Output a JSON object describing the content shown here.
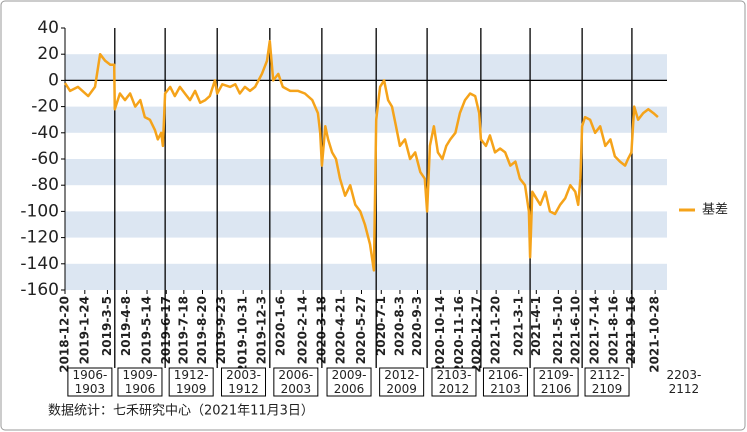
{
  "chart_data": {
    "type": "line",
    "x": [
      "2018-12-20",
      "2018-12-29",
      "2019-01-12",
      "2019-01-30",
      "2019-02-11",
      "2019-02-20",
      "2019-03-01",
      "2019-03-10",
      "2019-03-17",
      "2019-03-18",
      "2019-03-27",
      "2019-04-05",
      "2019-04-14",
      "2019-04-23",
      "2019-05-02",
      "2019-05-10",
      "2019-05-19",
      "2019-05-28",
      "2019-06-02",
      "2019-06-08",
      "2019-06-11",
      "2019-06-15",
      "2019-06-24",
      "2019-07-02",
      "2019-07-11",
      "2019-07-20",
      "2019-07-29",
      "2019-08-07",
      "2019-08-16",
      "2019-08-25",
      "2019-09-02",
      "2019-09-11",
      "2019-09-15",
      "2019-09-24",
      "2019-10-08",
      "2019-10-17",
      "2019-10-25",
      "2019-11-03",
      "2019-11-12",
      "2019-11-21",
      "2019-12-03",
      "2019-12-12",
      "2019-12-17",
      "2019-12-23",
      "2020-01-01",
      "2020-01-09",
      "2020-01-22",
      "2020-02-05",
      "2020-02-17",
      "2020-03-01",
      "2020-03-11",
      "2020-03-15",
      "2020-03-18",
      "2020-03-24",
      "2020-03-29",
      "2020-04-05",
      "2020-04-12",
      "2020-04-19",
      "2020-04-28",
      "2020-05-07",
      "2020-05-16",
      "2020-05-25",
      "2020-06-02",
      "2020-06-11",
      "2020-06-18",
      "2020-06-22",
      "2020-06-29",
      "2020-07-06",
      "2020-07-13",
      "2020-07-20",
      "2020-07-27",
      "2020-08-03",
      "2020-08-12",
      "2020-08-21",
      "2020-08-30",
      "2020-09-08",
      "2020-09-16",
      "2020-09-20",
      "2020-09-25",
      "2020-10-02",
      "2020-10-09",
      "2020-10-17",
      "2020-10-24",
      "2020-10-31",
      "2020-11-09",
      "2020-11-17",
      "2020-11-26",
      "2020-12-05",
      "2020-12-14",
      "2020-12-21",
      "2020-12-24",
      "2021-01-02",
      "2021-01-09",
      "2021-01-18",
      "2021-01-27",
      "2021-02-05",
      "2021-02-14",
      "2021-02-23",
      "2021-03-03",
      "2021-03-12",
      "2021-03-19",
      "2021-03-21",
      "2021-03-25",
      "2021-04-01",
      "2021-04-08",
      "2021-04-17",
      "2021-04-25",
      "2021-05-04",
      "2021-05-13",
      "2021-05-22",
      "2021-05-31",
      "2021-06-09",
      "2021-06-14",
      "2021-06-18",
      "2021-06-21",
      "2021-06-26",
      "2021-07-05",
      "2021-07-14",
      "2021-07-23",
      "2021-08-01",
      "2021-08-10",
      "2021-08-18",
      "2021-08-27",
      "2021-09-05",
      "2021-09-10",
      "2021-09-16",
      "2021-09-21",
      "2021-09-28",
      "2021-10-07",
      "2021-10-16",
      "2021-10-25",
      "2021-11-02"
    ],
    "series": [
      {
        "name": "基差",
        "color": "#f5a31a",
        "values": [
          -2,
          -8,
          -5,
          -12,
          -5,
          20,
          15,
          12,
          12,
          -22,
          -10,
          -15,
          -10,
          -20,
          -15,
          -28,
          -30,
          -38,
          -45,
          -40,
          -50,
          -10,
          -5,
          -12,
          -5,
          -10,
          -15,
          -8,
          -17,
          -15,
          -12,
          0,
          -10,
          -3,
          -5,
          -3,
          -10,
          -5,
          -8,
          -5,
          5,
          15,
          30,
          0,
          5,
          -5,
          -8,
          -8,
          -10,
          -15,
          -25,
          -40,
          -65,
          -35,
          -45,
          -55,
          -60,
          -75,
          -88,
          -80,
          -95,
          -100,
          -110,
          -125,
          -145,
          -30,
          -5,
          0,
          -15,
          -20,
          -35,
          -50,
          -45,
          -60,
          -55,
          -70,
          -75,
          -100,
          -50,
          -35,
          -55,
          -60,
          -50,
          -45,
          -40,
          -25,
          -15,
          -10,
          -12,
          -25,
          -45,
          -50,
          -42,
          -55,
          -52,
          -55,
          -65,
          -62,
          -75,
          -80,
          -100,
          -135,
          -85,
          -90,
          -95,
          -85,
          -100,
          -102,
          -95,
          -90,
          -80,
          -85,
          -95,
          -75,
          -35,
          -28,
          -30,
          -40,
          -35,
          -50,
          -45,
          -58,
          -62,
          -65,
          -60,
          -55,
          -20,
          -30,
          -25,
          -22,
          -25,
          -28
        ]
      }
    ],
    "xlim": [
      "2018-12-20",
      "2021-11-18"
    ],
    "xticks": [
      {
        "value": "2018-12-20",
        "label": "2018-12-20"
      },
      {
        "value": "2019-01-24",
        "label": "2019-1-24"
      },
      {
        "value": "2019-03-05",
        "label": "2019-3-5"
      },
      {
        "value": "2019-04-08",
        "label": "2019-4-8"
      },
      {
        "value": "2019-05-14",
        "label": "2019-5-14"
      },
      {
        "value": "2019-06-17",
        "label": "2019-6-17"
      },
      {
        "value": "2019-07-18",
        "label": "2019-7-18"
      },
      {
        "value": "2019-08-20",
        "label": "2019-8-20"
      },
      {
        "value": "2019-09-23",
        "label": "2019-9-23"
      },
      {
        "value": "2019-10-31",
        "label": "2019-10-31"
      },
      {
        "value": "2019-12-03",
        "label": "2019-12-3"
      },
      {
        "value": "2020-01-06",
        "label": "2020-1-6"
      },
      {
        "value": "2020-02-14",
        "label": "2020-2-14"
      },
      {
        "value": "2020-03-18",
        "label": "2020-3-18"
      },
      {
        "value": "2020-04-21",
        "label": "2020-4-21"
      },
      {
        "value": "2020-05-27",
        "label": "2020-5-27"
      },
      {
        "value": "2020-07-01",
        "label": "2020-7-1"
      },
      {
        "value": "2020-08-03",
        "label": "2020-8-3"
      },
      {
        "value": "2020-09-03",
        "label": "2020-9-3"
      },
      {
        "value": "2020-10-14",
        "label": "2020-10-14"
      },
      {
        "value": "2020-11-16",
        "label": "2020-11-16"
      },
      {
        "value": "2020-12-17",
        "label": "2020-12-17"
      },
      {
        "value": "2021-01-20",
        "label": "2021-1-20"
      },
      {
        "value": "2021-03-01",
        "label": "2021-3-1"
      },
      {
        "value": "2021-04-01",
        "label": "2021-4-1"
      },
      {
        "value": "2021-05-10",
        "label": "2021-5-10"
      },
      {
        "value": "2021-06-10",
        "label": "2021-6-10"
      },
      {
        "value": "2021-07-14",
        "label": "2021-7-14"
      },
      {
        "value": "2021-08-16",
        "label": "2021-8-16"
      },
      {
        "value": "2021-09-16",
        "label": "2021-9-16"
      },
      {
        "value": "2021-10-28",
        "label": "2021-10-28"
      }
    ],
    "ylim": [
      -160,
      40
    ],
    "yticks": [
      -160,
      -140,
      -120,
      -100,
      -80,
      -60,
      -40,
      -20,
      0,
      20,
      40
    ],
    "bands": true,
    "band_color": "#dce6f2",
    "zero_line": true,
    "legend": "right",
    "contract_switches": [
      "2019-03-18",
      "2019-06-15",
      "2019-09-15",
      "2019-12-17",
      "2020-03-18",
      "2020-06-22",
      "2020-09-20",
      "2020-12-24",
      "2021-03-21",
      "2021-06-21",
      "2021-09-17"
    ],
    "contract_periods": [
      "1906-1903",
      "1909-1906",
      "1912-1909",
      "2003-1912",
      "2006-2003",
      "2009-2006",
      "2012-2009",
      "2103-2012",
      "2106-2103",
      "2109-2106",
      "2112-2109",
      "2203-2112"
    ],
    "source": "数据统计：七禾研究中心（2021年11月3日）"
  }
}
